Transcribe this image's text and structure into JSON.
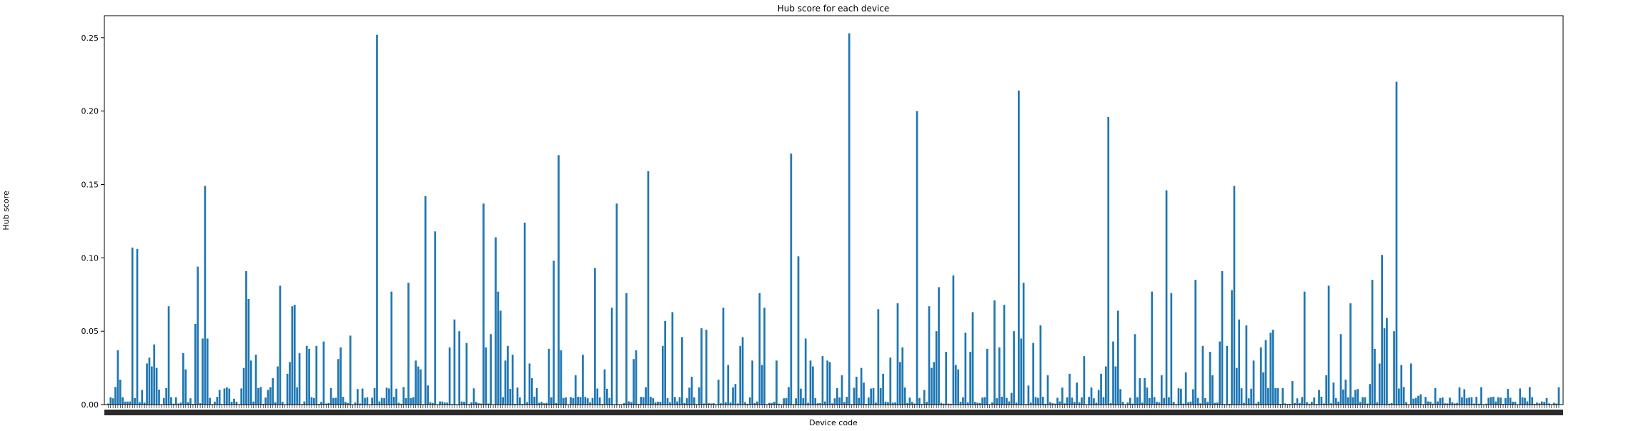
{
  "chart_data": {
    "type": "bar",
    "title": "Hub score for each device",
    "xlabel": "Device code",
    "ylabel": "Hub score",
    "ylim": [
      0,
      0.265
    ],
    "yticks": [
      "0.00",
      "0.05",
      "0.10",
      "0.15",
      "0.20",
      "0.25"
    ],
    "bar_color": "#1f77b4",
    "grid": false,
    "n_devices": 600,
    "peaks": [
      [
        3,
        0.012
      ],
      [
        4,
        0.037
      ],
      [
        5,
        0.017
      ],
      [
        10,
        0.107
      ],
      [
        12,
        0.106
      ],
      [
        14,
        0.01
      ],
      [
        16,
        0.028
      ],
      [
        17,
        0.032
      ],
      [
        18,
        0.026
      ],
      [
        19,
        0.041
      ],
      [
        20,
        0.025
      ],
      [
        25,
        0.067
      ],
      [
        28,
        0.005
      ],
      [
        31,
        0.035
      ],
      [
        32,
        0.024
      ],
      [
        36,
        0.055
      ],
      [
        37,
        0.094
      ],
      [
        39,
        0.045
      ],
      [
        40,
        0.149
      ],
      [
        41,
        0.045
      ],
      [
        46,
        0.01
      ],
      [
        48,
        0.011
      ],
      [
        52,
        0.004
      ],
      [
        55,
        0.011
      ],
      [
        56,
        0.025
      ],
      [
        57,
        0.091
      ],
      [
        58,
        0.072
      ],
      [
        59,
        0.03
      ],
      [
        61,
        0.034
      ],
      [
        63,
        0.012
      ],
      [
        66,
        0.01
      ],
      [
        68,
        0.018
      ],
      [
        70,
        0.026
      ],
      [
        71,
        0.081
      ],
      [
        74,
        0.021
      ],
      [
        75,
        0.029
      ],
      [
        76,
        0.067
      ],
      [
        77,
        0.068
      ],
      [
        79,
        0.035
      ],
      [
        82,
        0.04
      ],
      [
        83,
        0.038
      ],
      [
        86,
        0.04
      ],
      [
        89,
        0.043
      ],
      [
        95,
        0.031
      ],
      [
        96,
        0.039
      ],
      [
        100,
        0.047
      ],
      [
        111,
        0.252
      ],
      [
        117,
        0.077
      ],
      [
        124,
        0.083
      ],
      [
        127,
        0.03
      ],
      [
        128,
        0.026
      ],
      [
        129,
        0.024
      ],
      [
        131,
        0.142
      ],
      [
        132,
        0.013
      ],
      [
        135,
        0.118
      ],
      [
        141,
        0.039
      ],
      [
        143,
        0.058
      ],
      [
        145,
        0.05
      ],
      [
        148,
        0.042
      ],
      [
        155,
        0.137
      ],
      [
        156,
        0.039
      ],
      [
        158,
        0.048
      ],
      [
        160,
        0.114
      ],
      [
        161,
        0.077
      ],
      [
        162,
        0.064
      ],
      [
        164,
        0.03
      ],
      [
        165,
        0.04
      ],
      [
        167,
        0.034
      ],
      [
        172,
        0.124
      ],
      [
        174,
        0.028
      ],
      [
        175,
        0.018
      ],
      [
        182,
        0.038
      ],
      [
        184,
        0.098
      ],
      [
        186,
        0.17
      ],
      [
        187,
        0.037
      ],
      [
        193,
        0.02
      ],
      [
        196,
        0.034
      ],
      [
        201,
        0.093
      ],
      [
        205,
        0.024
      ],
      [
        208,
        0.066
      ],
      [
        210,
        0.137
      ],
      [
        214,
        0.076
      ],
      [
        217,
        0.031
      ],
      [
        218,
        0.037
      ],
      [
        223,
        0.159
      ],
      [
        229,
        0.04
      ],
      [
        230,
        0.057
      ],
      [
        233,
        0.063
      ],
      [
        237,
        0.046
      ],
      [
        241,
        0.019
      ],
      [
        245,
        0.052
      ],
      [
        247,
        0.051
      ],
      [
        252,
        0.017
      ],
      [
        254,
        0.066
      ],
      [
        256,
        0.027
      ],
      [
        259,
        0.014
      ],
      [
        261,
        0.04
      ],
      [
        262,
        0.046
      ],
      [
        266,
        0.03
      ],
      [
        269,
        0.076
      ],
      [
        270,
        0.027
      ],
      [
        271,
        0.066
      ],
      [
        276,
        0.03
      ],
      [
        282,
        0.171
      ],
      [
        285,
        0.101
      ],
      [
        288,
        0.045
      ],
      [
        290,
        0.03
      ],
      [
        291,
        0.026
      ],
      [
        295,
        0.033
      ],
      [
        297,
        0.03
      ],
      [
        298,
        0.029
      ],
      [
        303,
        0.02
      ],
      [
        306,
        0.253
      ],
      [
        309,
        0.019
      ],
      [
        311,
        0.025
      ],
      [
        312,
        0.015
      ],
      [
        318,
        0.065
      ],
      [
        320,
        0.021
      ],
      [
        323,
        0.032
      ],
      [
        326,
        0.069
      ],
      [
        327,
        0.029
      ],
      [
        328,
        0.039
      ],
      [
        334,
        0.2
      ],
      [
        337,
        0.01
      ],
      [
        339,
        0.067
      ],
      [
        340,
        0.025
      ],
      [
        341,
        0.029
      ],
      [
        342,
        0.05
      ],
      [
        343,
        0.08
      ],
      [
        346,
        0.036
      ],
      [
        349,
        0.088
      ],
      [
        350,
        0.027
      ],
      [
        351,
        0.024
      ],
      [
        354,
        0.049
      ],
      [
        356,
        0.036
      ],
      [
        357,
        0.063
      ],
      [
        363,
        0.038
      ],
      [
        366,
        0.071
      ],
      [
        368,
        0.039
      ],
      [
        370,
        0.068
      ],
      [
        373,
        0.008
      ],
      [
        374,
        0.05
      ],
      [
        376,
        0.214
      ],
      [
        377,
        0.045
      ],
      [
        378,
        0.083
      ],
      [
        380,
        0.013
      ],
      [
        382,
        0.042
      ],
      [
        385,
        0.054
      ],
      [
        388,
        0.02
      ],
      [
        397,
        0.021
      ],
      [
        400,
        0.015
      ],
      [
        403,
        0.033
      ],
      [
        409,
        0.01
      ],
      [
        410,
        0.021
      ],
      [
        412,
        0.026
      ],
      [
        413,
        0.196
      ],
      [
        415,
        0.043
      ],
      [
        416,
        0.026
      ],
      [
        417,
        0.064
      ],
      [
        424,
        0.048
      ],
      [
        426,
        0.018
      ],
      [
        428,
        0.018
      ],
      [
        431,
        0.077
      ],
      [
        435,
        0.02
      ],
      [
        437,
        0.146
      ],
      [
        439,
        0.076
      ],
      [
        445,
        0.022
      ],
      [
        449,
        0.085
      ],
      [
        452,
        0.04
      ],
      [
        455,
        0.036
      ],
      [
        456,
        0.02
      ],
      [
        459,
        0.043
      ],
      [
        460,
        0.091
      ],
      [
        462,
        0.04
      ],
      [
        464,
        0.078
      ],
      [
        465,
        0.149
      ],
      [
        466,
        0.025
      ],
      [
        467,
        0.058
      ],
      [
        470,
        0.054
      ],
      [
        473,
        0.03
      ],
      [
        476,
        0.039
      ],
      [
        477,
        0.022
      ],
      [
        478,
        0.044
      ],
      [
        480,
        0.049
      ],
      [
        481,
        0.051
      ],
      [
        489,
        0.016
      ],
      [
        494,
        0.077
      ],
      [
        500,
        0.01
      ],
      [
        503,
        0.02
      ],
      [
        504,
        0.081
      ],
      [
        506,
        0.015
      ],
      [
        509,
        0.048
      ],
      [
        511,
        0.017
      ],
      [
        513,
        0.069
      ],
      [
        515,
        0.01
      ],
      [
        521,
        0.014
      ],
      [
        522,
        0.085
      ],
      [
        523,
        0.038
      ],
      [
        525,
        0.028
      ],
      [
        526,
        0.102
      ],
      [
        527,
        0.052
      ],
      [
        528,
        0.059
      ],
      [
        531,
        0.05
      ],
      [
        532,
        0.22
      ],
      [
        534,
        0.027
      ],
      [
        538,
        0.028
      ],
      [
        539,
        0.004
      ],
      [
        541,
        0.006
      ],
      [
        542,
        0.007
      ]
    ]
  }
}
